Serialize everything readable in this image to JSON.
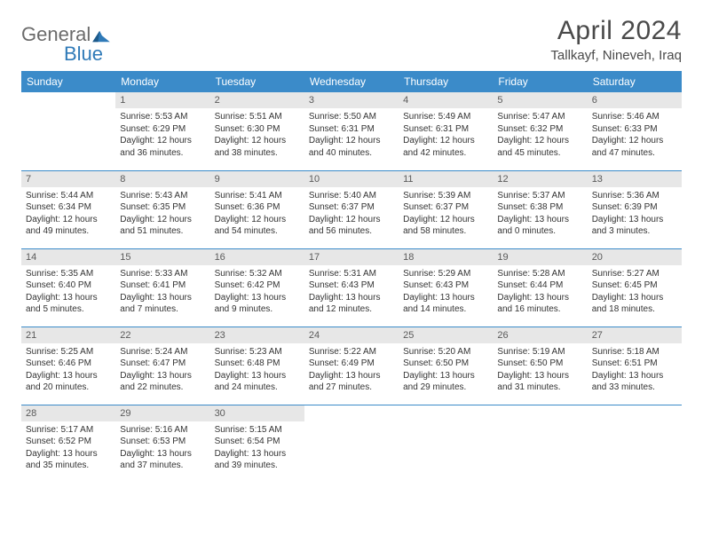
{
  "brand": {
    "general": "General",
    "blue": "Blue"
  },
  "title": {
    "month": "April 2024",
    "location": "Tallkayf, Nineveh, Iraq"
  },
  "weekdays": [
    "Sunday",
    "Monday",
    "Tuesday",
    "Wednesday",
    "Thursday",
    "Friday",
    "Saturday"
  ],
  "colors": {
    "header_bg": "#3b8bc9",
    "header_text": "#ffffff",
    "daynum_bg": "#e7e7e7",
    "border": "#3b8bc9",
    "logo_blue": "#2f7ab8",
    "logo_gray": "#6b6b6b",
    "text": "#333333"
  },
  "weeks": [
    [
      {
        "n": "",
        "sunrise": "",
        "sunset": "",
        "daylight1": "",
        "daylight2": "",
        "empty": true
      },
      {
        "n": "1",
        "sunrise": "Sunrise: 5:53 AM",
        "sunset": "Sunset: 6:29 PM",
        "daylight1": "Daylight: 12 hours",
        "daylight2": "and 36 minutes."
      },
      {
        "n": "2",
        "sunrise": "Sunrise: 5:51 AM",
        "sunset": "Sunset: 6:30 PM",
        "daylight1": "Daylight: 12 hours",
        "daylight2": "and 38 minutes."
      },
      {
        "n": "3",
        "sunrise": "Sunrise: 5:50 AM",
        "sunset": "Sunset: 6:31 PM",
        "daylight1": "Daylight: 12 hours",
        "daylight2": "and 40 minutes."
      },
      {
        "n": "4",
        "sunrise": "Sunrise: 5:49 AM",
        "sunset": "Sunset: 6:31 PM",
        "daylight1": "Daylight: 12 hours",
        "daylight2": "and 42 minutes."
      },
      {
        "n": "5",
        "sunrise": "Sunrise: 5:47 AM",
        "sunset": "Sunset: 6:32 PM",
        "daylight1": "Daylight: 12 hours",
        "daylight2": "and 45 minutes."
      },
      {
        "n": "6",
        "sunrise": "Sunrise: 5:46 AM",
        "sunset": "Sunset: 6:33 PM",
        "daylight1": "Daylight: 12 hours",
        "daylight2": "and 47 minutes."
      }
    ],
    [
      {
        "n": "7",
        "sunrise": "Sunrise: 5:44 AM",
        "sunset": "Sunset: 6:34 PM",
        "daylight1": "Daylight: 12 hours",
        "daylight2": "and 49 minutes."
      },
      {
        "n": "8",
        "sunrise": "Sunrise: 5:43 AM",
        "sunset": "Sunset: 6:35 PM",
        "daylight1": "Daylight: 12 hours",
        "daylight2": "and 51 minutes."
      },
      {
        "n": "9",
        "sunrise": "Sunrise: 5:41 AM",
        "sunset": "Sunset: 6:36 PM",
        "daylight1": "Daylight: 12 hours",
        "daylight2": "and 54 minutes."
      },
      {
        "n": "10",
        "sunrise": "Sunrise: 5:40 AM",
        "sunset": "Sunset: 6:37 PM",
        "daylight1": "Daylight: 12 hours",
        "daylight2": "and 56 minutes."
      },
      {
        "n": "11",
        "sunrise": "Sunrise: 5:39 AM",
        "sunset": "Sunset: 6:37 PM",
        "daylight1": "Daylight: 12 hours",
        "daylight2": "and 58 minutes."
      },
      {
        "n": "12",
        "sunrise": "Sunrise: 5:37 AM",
        "sunset": "Sunset: 6:38 PM",
        "daylight1": "Daylight: 13 hours",
        "daylight2": "and 0 minutes."
      },
      {
        "n": "13",
        "sunrise": "Sunrise: 5:36 AM",
        "sunset": "Sunset: 6:39 PM",
        "daylight1": "Daylight: 13 hours",
        "daylight2": "and 3 minutes."
      }
    ],
    [
      {
        "n": "14",
        "sunrise": "Sunrise: 5:35 AM",
        "sunset": "Sunset: 6:40 PM",
        "daylight1": "Daylight: 13 hours",
        "daylight2": "and 5 minutes."
      },
      {
        "n": "15",
        "sunrise": "Sunrise: 5:33 AM",
        "sunset": "Sunset: 6:41 PM",
        "daylight1": "Daylight: 13 hours",
        "daylight2": "and 7 minutes."
      },
      {
        "n": "16",
        "sunrise": "Sunrise: 5:32 AM",
        "sunset": "Sunset: 6:42 PM",
        "daylight1": "Daylight: 13 hours",
        "daylight2": "and 9 minutes."
      },
      {
        "n": "17",
        "sunrise": "Sunrise: 5:31 AM",
        "sunset": "Sunset: 6:43 PM",
        "daylight1": "Daylight: 13 hours",
        "daylight2": "and 12 minutes."
      },
      {
        "n": "18",
        "sunrise": "Sunrise: 5:29 AM",
        "sunset": "Sunset: 6:43 PM",
        "daylight1": "Daylight: 13 hours",
        "daylight2": "and 14 minutes."
      },
      {
        "n": "19",
        "sunrise": "Sunrise: 5:28 AM",
        "sunset": "Sunset: 6:44 PM",
        "daylight1": "Daylight: 13 hours",
        "daylight2": "and 16 minutes."
      },
      {
        "n": "20",
        "sunrise": "Sunrise: 5:27 AM",
        "sunset": "Sunset: 6:45 PM",
        "daylight1": "Daylight: 13 hours",
        "daylight2": "and 18 minutes."
      }
    ],
    [
      {
        "n": "21",
        "sunrise": "Sunrise: 5:25 AM",
        "sunset": "Sunset: 6:46 PM",
        "daylight1": "Daylight: 13 hours",
        "daylight2": "and 20 minutes."
      },
      {
        "n": "22",
        "sunrise": "Sunrise: 5:24 AM",
        "sunset": "Sunset: 6:47 PM",
        "daylight1": "Daylight: 13 hours",
        "daylight2": "and 22 minutes."
      },
      {
        "n": "23",
        "sunrise": "Sunrise: 5:23 AM",
        "sunset": "Sunset: 6:48 PM",
        "daylight1": "Daylight: 13 hours",
        "daylight2": "and 24 minutes."
      },
      {
        "n": "24",
        "sunrise": "Sunrise: 5:22 AM",
        "sunset": "Sunset: 6:49 PM",
        "daylight1": "Daylight: 13 hours",
        "daylight2": "and 27 minutes."
      },
      {
        "n": "25",
        "sunrise": "Sunrise: 5:20 AM",
        "sunset": "Sunset: 6:50 PM",
        "daylight1": "Daylight: 13 hours",
        "daylight2": "and 29 minutes."
      },
      {
        "n": "26",
        "sunrise": "Sunrise: 5:19 AM",
        "sunset": "Sunset: 6:50 PM",
        "daylight1": "Daylight: 13 hours",
        "daylight2": "and 31 minutes."
      },
      {
        "n": "27",
        "sunrise": "Sunrise: 5:18 AM",
        "sunset": "Sunset: 6:51 PM",
        "daylight1": "Daylight: 13 hours",
        "daylight2": "and 33 minutes."
      }
    ],
    [
      {
        "n": "28",
        "sunrise": "Sunrise: 5:17 AM",
        "sunset": "Sunset: 6:52 PM",
        "daylight1": "Daylight: 13 hours",
        "daylight2": "and 35 minutes."
      },
      {
        "n": "29",
        "sunrise": "Sunrise: 5:16 AM",
        "sunset": "Sunset: 6:53 PM",
        "daylight1": "Daylight: 13 hours",
        "daylight2": "and 37 minutes."
      },
      {
        "n": "30",
        "sunrise": "Sunrise: 5:15 AM",
        "sunset": "Sunset: 6:54 PM",
        "daylight1": "Daylight: 13 hours",
        "daylight2": "and 39 minutes."
      },
      {
        "n": "",
        "sunrise": "",
        "sunset": "",
        "daylight1": "",
        "daylight2": "",
        "empty": true
      },
      {
        "n": "",
        "sunrise": "",
        "sunset": "",
        "daylight1": "",
        "daylight2": "",
        "empty": true
      },
      {
        "n": "",
        "sunrise": "",
        "sunset": "",
        "daylight1": "",
        "daylight2": "",
        "empty": true
      },
      {
        "n": "",
        "sunrise": "",
        "sunset": "",
        "daylight1": "",
        "daylight2": "",
        "empty": true
      }
    ]
  ]
}
